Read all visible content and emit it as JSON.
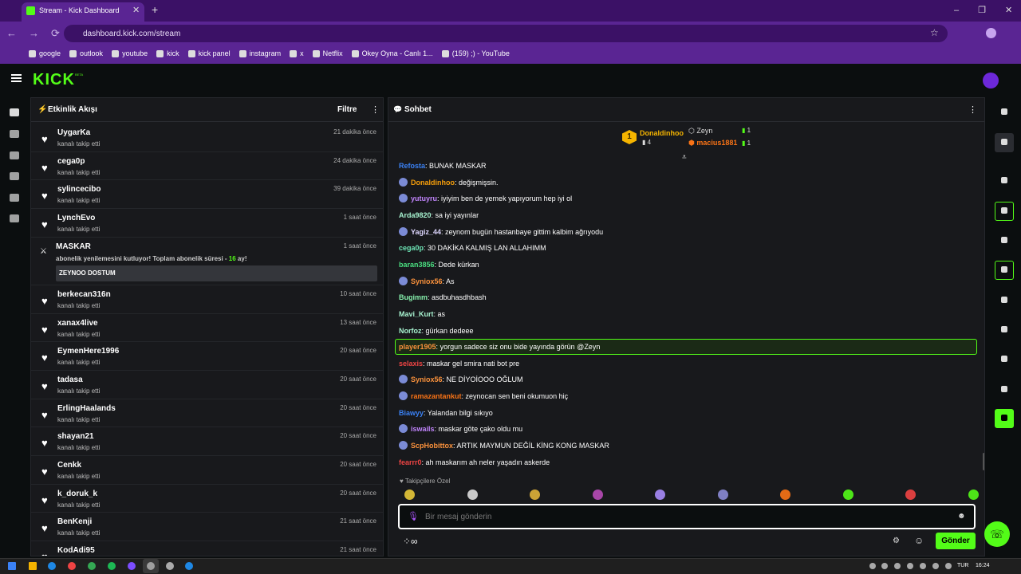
{
  "browser": {
    "tab_title": "Stream - Kick Dashboard",
    "url": "dashboard.kick.com/stream",
    "bookmarks": [
      "google",
      "outlook",
      "youtube",
      "kick",
      "kick panel",
      "instagram",
      "x",
      "Netflix",
      "Okey Oyna - Canlı 1...",
      "(159) ;) - YouTube"
    ]
  },
  "header": {
    "logo": "KICK",
    "beta": "BETA"
  },
  "activity": {
    "title": "Etkinlik Akışı",
    "filter": "Filtre",
    "items": [
      {
        "name": "UygarKa",
        "action": "kanalı takip etti",
        "time": "21 dakika önce"
      },
      {
        "name": "cega0p",
        "action": "kanalı takip etti",
        "time": "24 dakika önce"
      },
      {
        "name": "sylincecibo",
        "action": "kanalı takip etti",
        "time": "39 dakika önce"
      },
      {
        "name": "LynchEvo",
        "action": "kanalı takip etti",
        "time": "1 saat önce"
      },
      {
        "name": "MASKAR",
        "action": "abonelik yenilemesini kutluyor! Toplam abonelik süresi - ",
        "months": "16",
        "suffix": " ay!",
        "message": "ZEYNOO DOSTUM",
        "time": "1 saat önce"
      },
      {
        "name": "berkecan316n",
        "action": "kanalı takip etti",
        "time": "10 saat önce"
      },
      {
        "name": "xanax4live",
        "action": "kanalı takip etti",
        "time": "13 saat önce"
      },
      {
        "name": "EymenHere1996",
        "action": "kanalı takip etti",
        "time": "20 saat önce"
      },
      {
        "name": "tadasa",
        "action": "kanalı takip etti",
        "time": "20 saat önce"
      },
      {
        "name": "ErlingHaalands",
        "action": "kanalı takip etti",
        "time": "20 saat önce"
      },
      {
        "name": "shayan21",
        "action": "kanalı takip etti",
        "time": "20 saat önce"
      },
      {
        "name": "Cenkk",
        "action": "kanalı takip etti",
        "time": "20 saat önce"
      },
      {
        "name": "k_doruk_k",
        "action": "kanalı takip etti",
        "time": "20 saat önce"
      },
      {
        "name": "BenKenji",
        "action": "kanalı takip etti",
        "time": "21 saat önce"
      },
      {
        "name": "KodAdi95",
        "time": "21 saat önce"
      }
    ]
  },
  "chat": {
    "title": "Sohbet",
    "leaders": [
      {
        "rank": "1",
        "name": "Donaldinhoo",
        "count": "4"
      },
      {
        "name": "Zeyn",
        "count": "1"
      },
      {
        "name": "macius1881",
        "count": "1"
      }
    ],
    "messages": [
      {
        "user": "Refosta",
        "color": "#3b82f6",
        "text": "BUNAK MASKAR"
      },
      {
        "user": "Donaldinhoo",
        "color": "#f59e0b",
        "text": "değişmişsin.",
        "badge": true
      },
      {
        "user": "yutuyru",
        "color": "#c084fc",
        "text": "iyiyim ben de yemek yapıyorum hep iyi ol",
        "badge": true
      },
      {
        "user": "Arda9820",
        "color": "#a7f3d0",
        "text": "sa iyi yayınlar"
      },
      {
        "user": "Yagiz_44",
        "color": "#ddd6fe",
        "text": "zeynom bugün hastanbaye gittim kalbim ağrıyodu",
        "badge": true
      },
      {
        "user": "cega0p",
        "color": "#6ee7b7",
        "text": "30 DAKİKA KALMIŞ LAN ALLAHIMM"
      },
      {
        "user": "baran3856",
        "color": "#4ade80",
        "text": "Dede kürkan"
      },
      {
        "user": "Syniox56",
        "color": "#fb923c",
        "text": "As",
        "badge": true
      },
      {
        "user": "Bugimm",
        "color": "#86efac",
        "text": "asdbuhasdhbash"
      },
      {
        "user": "Mavi_Kurt",
        "color": "#a7f3d0",
        "text": "as"
      },
      {
        "user": "Norfoz",
        "color": "#a7f3d0",
        "text": "gürkan dedeee"
      },
      {
        "user": "player1905",
        "color": "#fb923c",
        "text": "yorgun sadece siz onu bide yayında görün @Zeyn",
        "highlight": true
      },
      {
        "user": "selaxis",
        "color": "#ef4444",
        "text": "maskar gel smira nati bot pre"
      },
      {
        "user": "Syniox56",
        "color": "#fb923c",
        "text": "NE DİYOİOOO OĞLUM",
        "badge": true
      },
      {
        "user": "ramazantankut",
        "color": "#f97316",
        "text": "zeynocan sen beni okumuon hiç",
        "badge": true
      },
      {
        "user": "Biawyy",
        "color": "#3b82f6",
        "text": "Yalandan bilgi sıkıyo"
      },
      {
        "user": "iswails",
        "color": "#c084fc",
        "text": "maskar göte çako oldu mu",
        "badge": true
      },
      {
        "user": "ScpHobittox",
        "color": "#fb923c",
        "text": "ARTIK MAYMUN DEĞİL KİNG KONG MASKAR",
        "badge": true
      },
      {
        "user": "fearrr0",
        "color": "#ef4444",
        "text": "ah maskarım ah neler yaşadın askerde"
      }
    ],
    "emote_label": "Takipçilere Özel",
    "placeholder": "Bir mesaj gönderin",
    "send": "Gönder"
  },
  "taskbar": {
    "lang": "TUR",
    "time": "16:24"
  }
}
